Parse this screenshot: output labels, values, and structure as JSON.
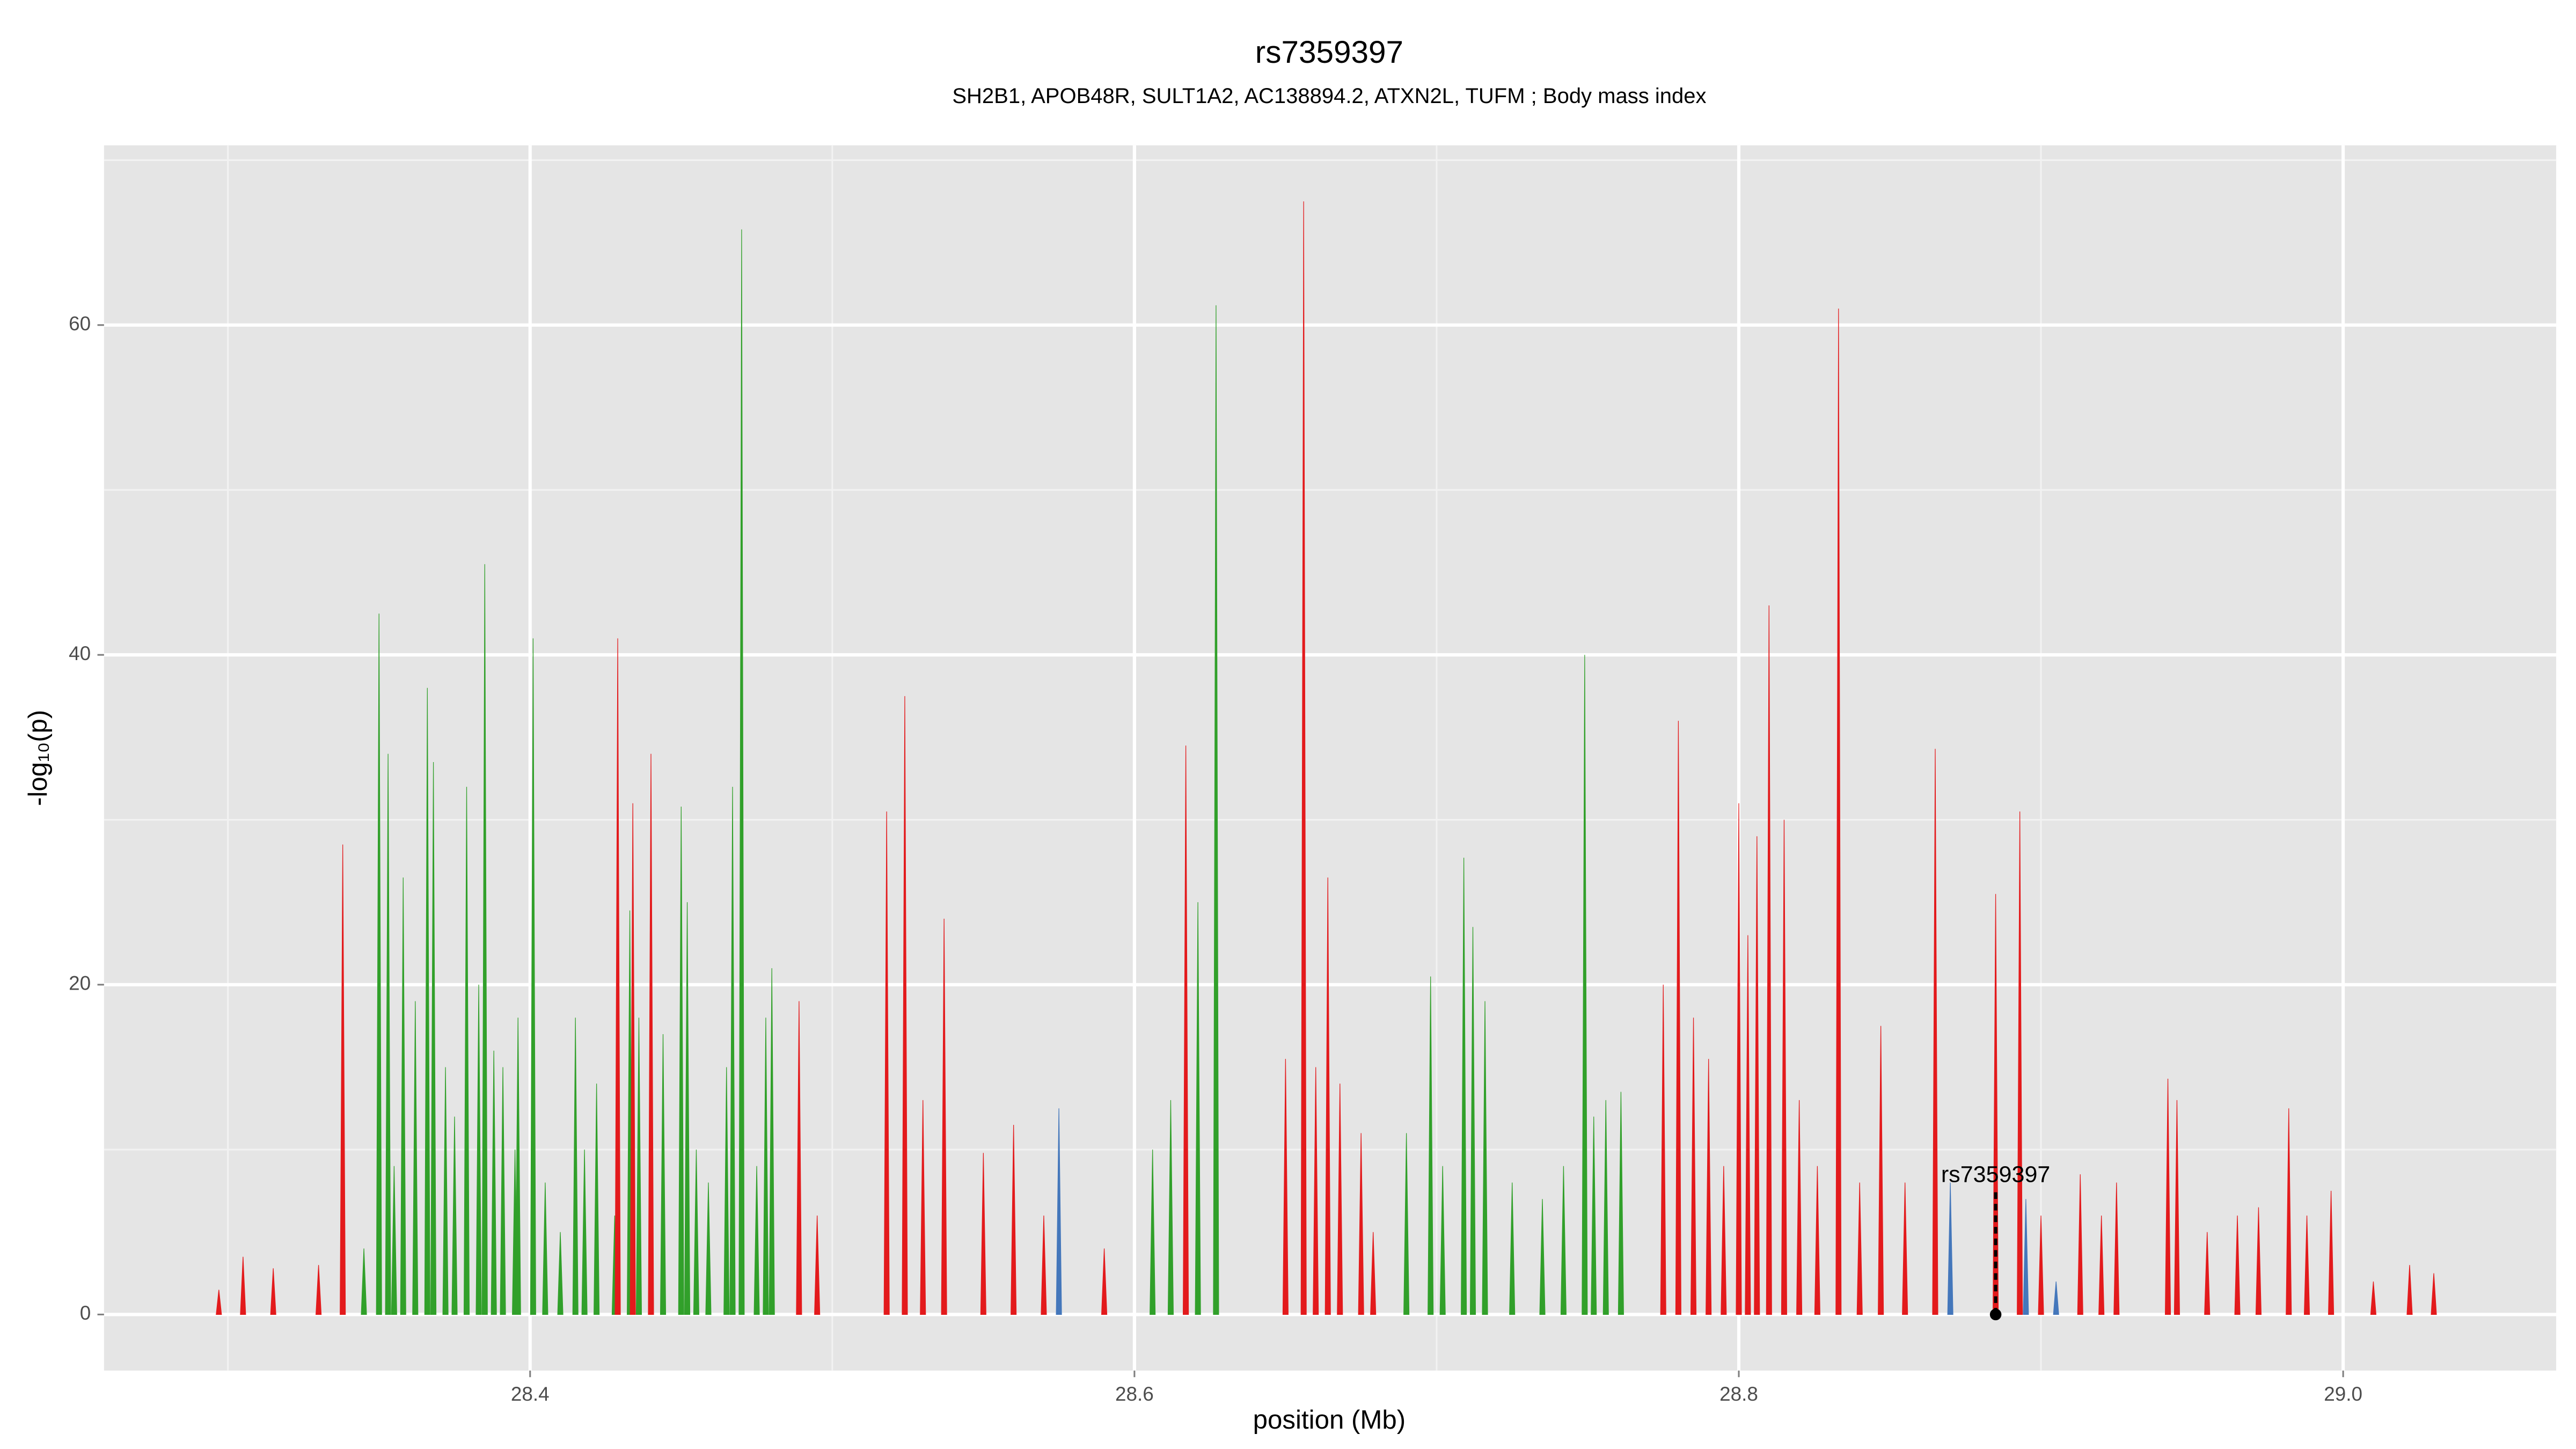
{
  "chart_data": {
    "type": "spike",
    "title": "rs7359397",
    "subtitle": "SH2B1, APOB48R, SULT1A2, AC138894.2, ATXN2L, TUFM ; Body mass index",
    "x_label": "position (Mb)",
    "y_label": "-log₁₀(p)",
    "xlim": [
      28.259,
      29.0705
    ],
    "ylim": [
      -3.4,
      70.9
    ],
    "xticks": [
      28.4,
      28.6,
      28.8,
      {
        "value": 29,
        "label": "29.0"
      }
    ],
    "yticks": [
      0,
      20,
      40,
      60
    ],
    "grid": true,
    "series": [
      {
        "color": "#31a02a",
        "x": [
          28.345,
          28.35,
          28.353,
          28.355,
          28.358,
          28.362,
          28.366,
          28.368,
          28.372,
          28.375,
          28.379,
          28.383,
          28.385,
          28.388,
          28.391,
          28.395,
          28.396,
          28.401,
          28.405,
          28.41,
          28.415,
          28.418,
          28.422,
          28.428,
          28.433,
          28.436,
          28.44,
          28.444,
          28.45,
          28.452,
          28.455,
          28.459,
          28.465,
          28.467,
          28.47,
          28.475,
          28.478,
          28.48,
          28.606,
          28.612,
          28.617,
          28.621,
          28.627,
          28.69,
          28.698,
          28.702,
          28.709,
          28.712,
          28.716,
          28.725,
          28.735,
          28.742,
          28.749,
          28.752,
          28.756,
          28.761
        ],
        "values": [
          4,
          42.5,
          34,
          9,
          26.5,
          19,
          38,
          33.5,
          15,
          12,
          32,
          20,
          45.5,
          16,
          15,
          10,
          18,
          41,
          8,
          5,
          18,
          10,
          14,
          6,
          24.5,
          18,
          13,
          17,
          30.8,
          25,
          10,
          8,
          15,
          32,
          65.8,
          9,
          18,
          21,
          10,
          13,
          12,
          25,
          61.2,
          11,
          20.5,
          9,
          27.7,
          23.5,
          19,
          8,
          7,
          9,
          40,
          12,
          13,
          13.5
        ]
      },
      {
        "color": "#e31a1c",
        "x": [
          28.297,
          28.305,
          28.315,
          28.33,
          28.338,
          28.429,
          28.434,
          28.44,
          28.489,
          28.495,
          28.518,
          28.524,
          28.53,
          28.537,
          28.55,
          28.56,
          28.57,
          28.59,
          28.617,
          28.65,
          28.656,
          28.66,
          28.664,
          28.668,
          28.675,
          28.679,
          28.775,
          28.78,
          28.785,
          28.79,
          28.795,
          28.8,
          28.803,
          28.806,
          28.81,
          28.815,
          28.82,
          28.826,
          28.833,
          28.84,
          28.847,
          28.855,
          28.865,
          28.885,
          28.893,
          28.9,
          28.913,
          28.92,
          28.925,
          28.942,
          28.945,
          28.955,
          28.965,
          28.972,
          28.982,
          28.988,
          28.996,
          29.01,
          29.022,
          29.03
        ],
        "values": [
          1.5,
          3.5,
          2.8,
          3,
          28.5,
          41,
          31,
          34,
          19,
          6,
          30.5,
          37.5,
          13,
          24,
          9.8,
          11.5,
          6,
          4,
          34.5,
          15.5,
          67.5,
          15,
          26.5,
          14,
          11,
          5,
          20,
          36,
          18,
          15.5,
          9,
          31,
          23,
          29,
          43,
          30,
          13,
          9,
          61,
          8,
          17.5,
          8,
          34.3,
          25.5,
          30.5,
          6,
          8.5,
          6,
          8,
          14.3,
          13,
          5,
          6,
          6.5,
          12.5,
          6,
          7.5,
          2,
          3,
          2.5
        ]
      },
      {
        "color": "#4477bb",
        "x": [
          28.575,
          28.87,
          28.895,
          28.905
        ],
        "values": [
          12.5,
          8,
          7,
          2
        ]
      }
    ],
    "annotation": {
      "text": "rs7359397",
      "x": 28.885,
      "y": 0,
      "label_y": 8.4
    }
  }
}
